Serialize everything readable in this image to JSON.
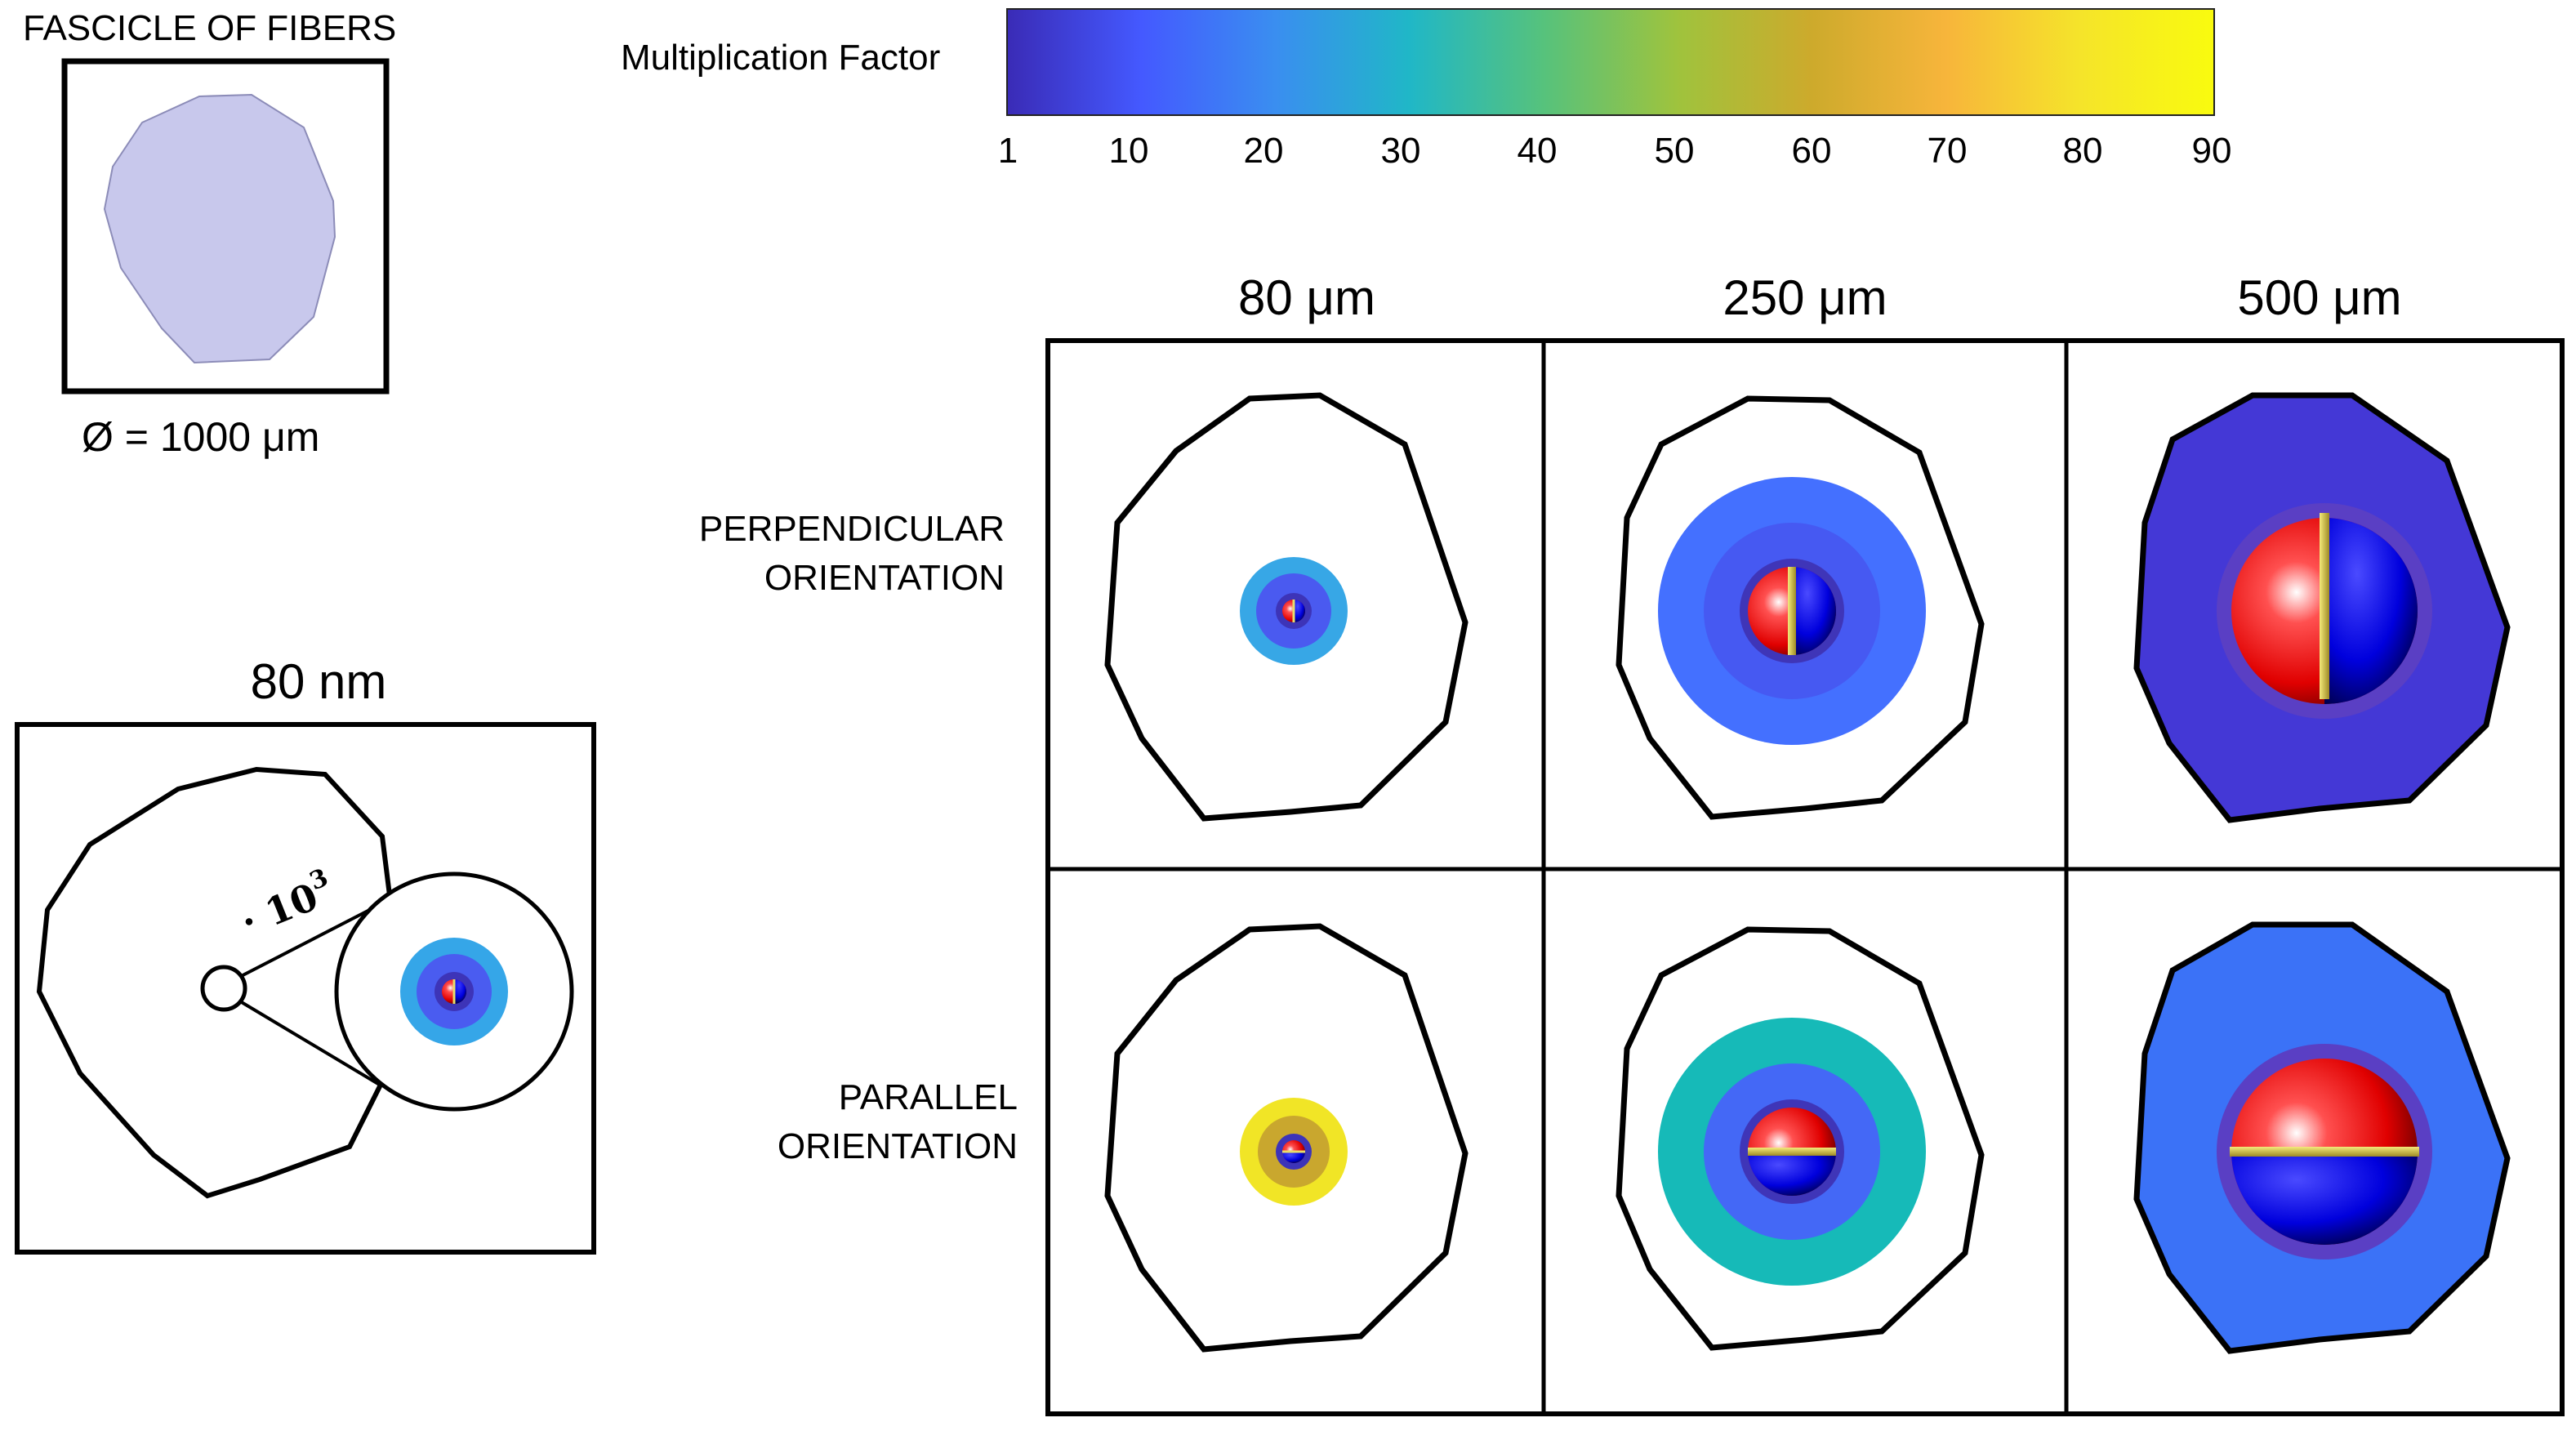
{
  "fascicle": {
    "title": "FASCICLE OF FIBERS",
    "diameter_label": "Ø = 1000 μm"
  },
  "colorbar": {
    "label": "Multiplication Factor",
    "ticks": [
      "1",
      "10",
      "20",
      "30",
      "40",
      "50",
      "60",
      "70",
      "80",
      "90"
    ],
    "colors": [
      "#3a2bb6",
      "#4459ff",
      "#3a8ef0",
      "#20b7c7",
      "#56c27c",
      "#9fc33d",
      "#cdaa2c",
      "#f7b53b",
      "#f5e42a",
      "#f9fb0e"
    ]
  },
  "inset": {
    "title": "80 nm",
    "zoom_label": "· 10",
    "zoom_exponent": "3"
  },
  "columns": [
    "80 μm",
    "250 μm",
    "500 μm"
  ],
  "rows": [
    {
      "line1": "PERPENDICULAR",
      "line2": "ORIENTATION"
    },
    {
      "line1": "PARALLEL",
      "line2": "ORIENTATION"
    }
  ]
}
